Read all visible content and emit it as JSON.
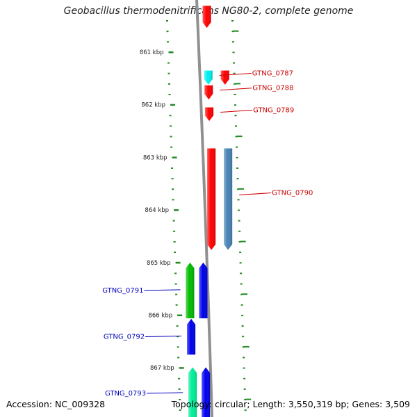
{
  "title": "Geobacillus thermodenitrificans NG80-2, complete genome",
  "footer": {
    "accession": "Accession: NC_009328",
    "summary": "Topology: circular; Length: 3,550,319 bp; Genes: 3,509"
  },
  "ruler": {
    "unit_suffix": " kbp",
    "ticks": [
      861,
      862,
      863,
      864,
      865,
      866,
      867
    ]
  },
  "colors": {
    "ruler": "#228b22",
    "backbone": "#909090",
    "forward_label": "#cc0000",
    "reverse_label": "#0000bb"
  },
  "genes": [
    {
      "label": "",
      "strand": "+",
      "color": "#ff0000",
      "start": 860.12,
      "end": 860.54
    },
    {
      "label": "GTNG_0787",
      "strand": "+",
      "color": "#00eeee",
      "start": 861.35,
      "end": 861.62
    },
    {
      "label": "",
      "strand": "+",
      "color": "#ff0000",
      "start": 861.35,
      "end": 861.62
    },
    {
      "label": "GTNG_0788",
      "strand": "+",
      "color": "#ff0000",
      "start": 861.63,
      "end": 861.9
    },
    {
      "label": "GTNG_0789",
      "strand": "+",
      "color": "#ff0000",
      "start": 862.05,
      "end": 862.31
    },
    {
      "label": "",
      "strand": "+",
      "color": "#ff0000",
      "start": 862.83,
      "end": 864.76
    },
    {
      "label": "GTNG_0790",
      "strand": "+",
      "color": "#4682b4",
      "start": 862.83,
      "end": 864.76
    },
    {
      "label": "GTNG_0791",
      "strand": "-",
      "color": "#00bb00",
      "start": 865.0,
      "end": 866.06
    },
    {
      "label": "",
      "strand": "-",
      "color": "#0000ee",
      "start": 865.0,
      "end": 866.06
    },
    {
      "label": "GTNG_0792",
      "strand": "-",
      "color": "#0000ee",
      "start": 866.07,
      "end": 866.75
    },
    {
      "label": "GTNG_0793",
      "strand": "-",
      "color": "#00ee99",
      "start": 866.99,
      "end": 867.98
    },
    {
      "label": "",
      "strand": "-",
      "color": "#0000ee",
      "start": 866.99,
      "end": 867.98
    }
  ]
}
